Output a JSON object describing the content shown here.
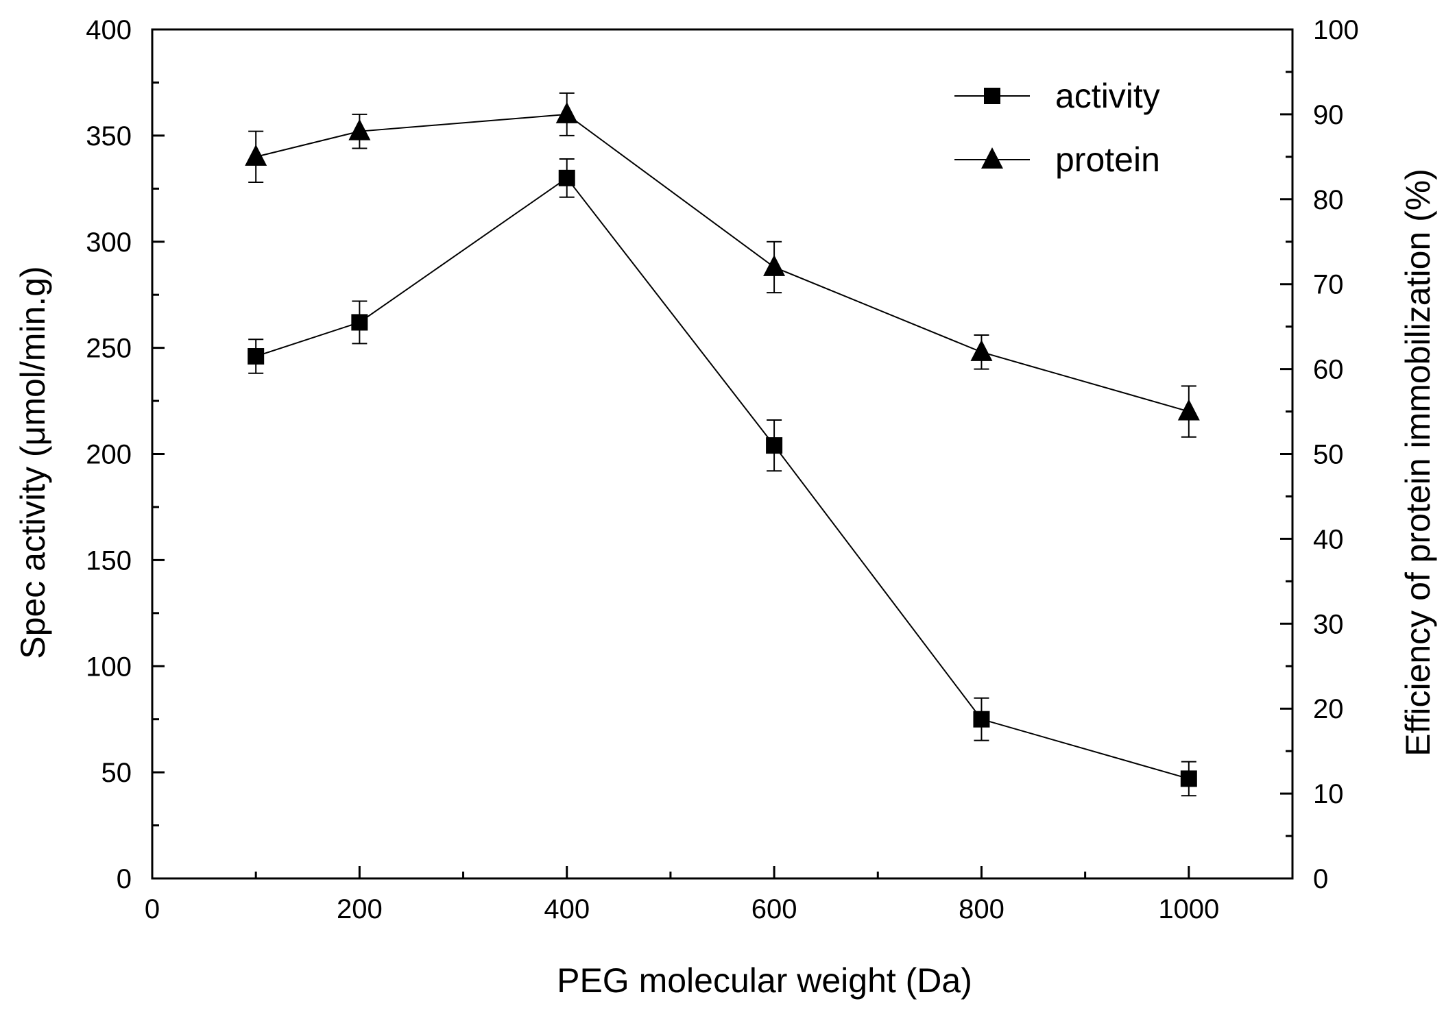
{
  "chart_data": {
    "type": "line",
    "x": [
      100,
      200,
      400,
      600,
      800,
      1000
    ],
    "xlabel": "PEG molecular weight (Da)",
    "xlim": [
      0,
      1100
    ],
    "xticks": [
      0,
      200,
      400,
      600,
      800,
      1000
    ],
    "xtick_labels": [
      "0",
      "200",
      "400",
      "600",
      "800",
      "1000"
    ],
    "ylabel": "Spec activity (μmol/min.g)",
    "ylim": [
      0,
      400
    ],
    "yticks": [
      0,
      50,
      100,
      150,
      200,
      250,
      300,
      350,
      400
    ],
    "ytick_labels": [
      "0",
      "50",
      "100",
      "150",
      "200",
      "250",
      "300",
      "350",
      "400"
    ],
    "y2label": "Efficiency of protein immobilization (%)",
    "y2lim": [
      0,
      100
    ],
    "y2ticks": [
      0,
      10,
      20,
      30,
      40,
      50,
      60,
      70,
      80,
      90,
      100
    ],
    "y2tick_labels": [
      "0",
      "10",
      "20",
      "30",
      "40",
      "50",
      "60",
      "70",
      "80",
      "90",
      "100"
    ],
    "legend_position": "top-right",
    "series": [
      {
        "name": "activity",
        "axis": "left",
        "marker": "square",
        "values": [
          246,
          262,
          330,
          204,
          75,
          47
        ],
        "errors": [
          8,
          10,
          9,
          12,
          10,
          8
        ]
      },
      {
        "name": "protein",
        "axis": "right",
        "marker": "triangle",
        "values": [
          85,
          88,
          90,
          72,
          62,
          55
        ],
        "errors": [
          3,
          2,
          2.5,
          3,
          2,
          3
        ]
      }
    ]
  }
}
